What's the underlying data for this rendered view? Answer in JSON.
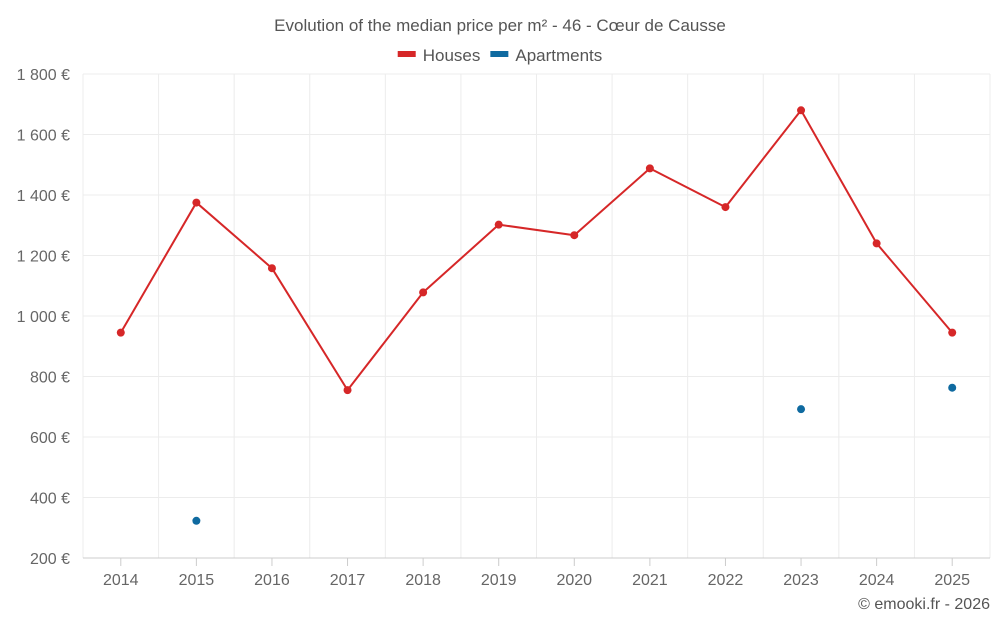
{
  "chart_data": {
    "type": "line",
    "title": "Evolution of the median price per m² - 46 - Cœur de Causse",
    "xlabel": "",
    "ylabel": "",
    "categories": [
      "2014",
      "2015",
      "2016",
      "2017",
      "2018",
      "2019",
      "2020",
      "2021",
      "2022",
      "2023",
      "2024",
      "2025"
    ],
    "ylim": [
      200,
      1800
    ],
    "yticks": [
      200,
      400,
      600,
      800,
      1000,
      1200,
      1400,
      1600,
      1800
    ],
    "ytick_labels": [
      "200 €",
      "400 €",
      "600 €",
      "800 €",
      "1 000 €",
      "1 200 €",
      "1 400 €",
      "1 600 €",
      "1 800 €"
    ],
    "grid": true,
    "legend_position": "top-center",
    "series": [
      {
        "name": "Houses",
        "color": "#d62728",
        "values": [
          945,
          1375,
          1158,
          755,
          1078,
          1302,
          1267,
          1488,
          1360,
          1680,
          1240,
          945
        ]
      },
      {
        "name": "Apartments",
        "color": "#0f6aa0",
        "values": [
          null,
          323,
          null,
          null,
          null,
          null,
          null,
          null,
          null,
          692,
          null,
          763
        ]
      }
    ]
  },
  "credit": "© emooki.fr - 2026"
}
